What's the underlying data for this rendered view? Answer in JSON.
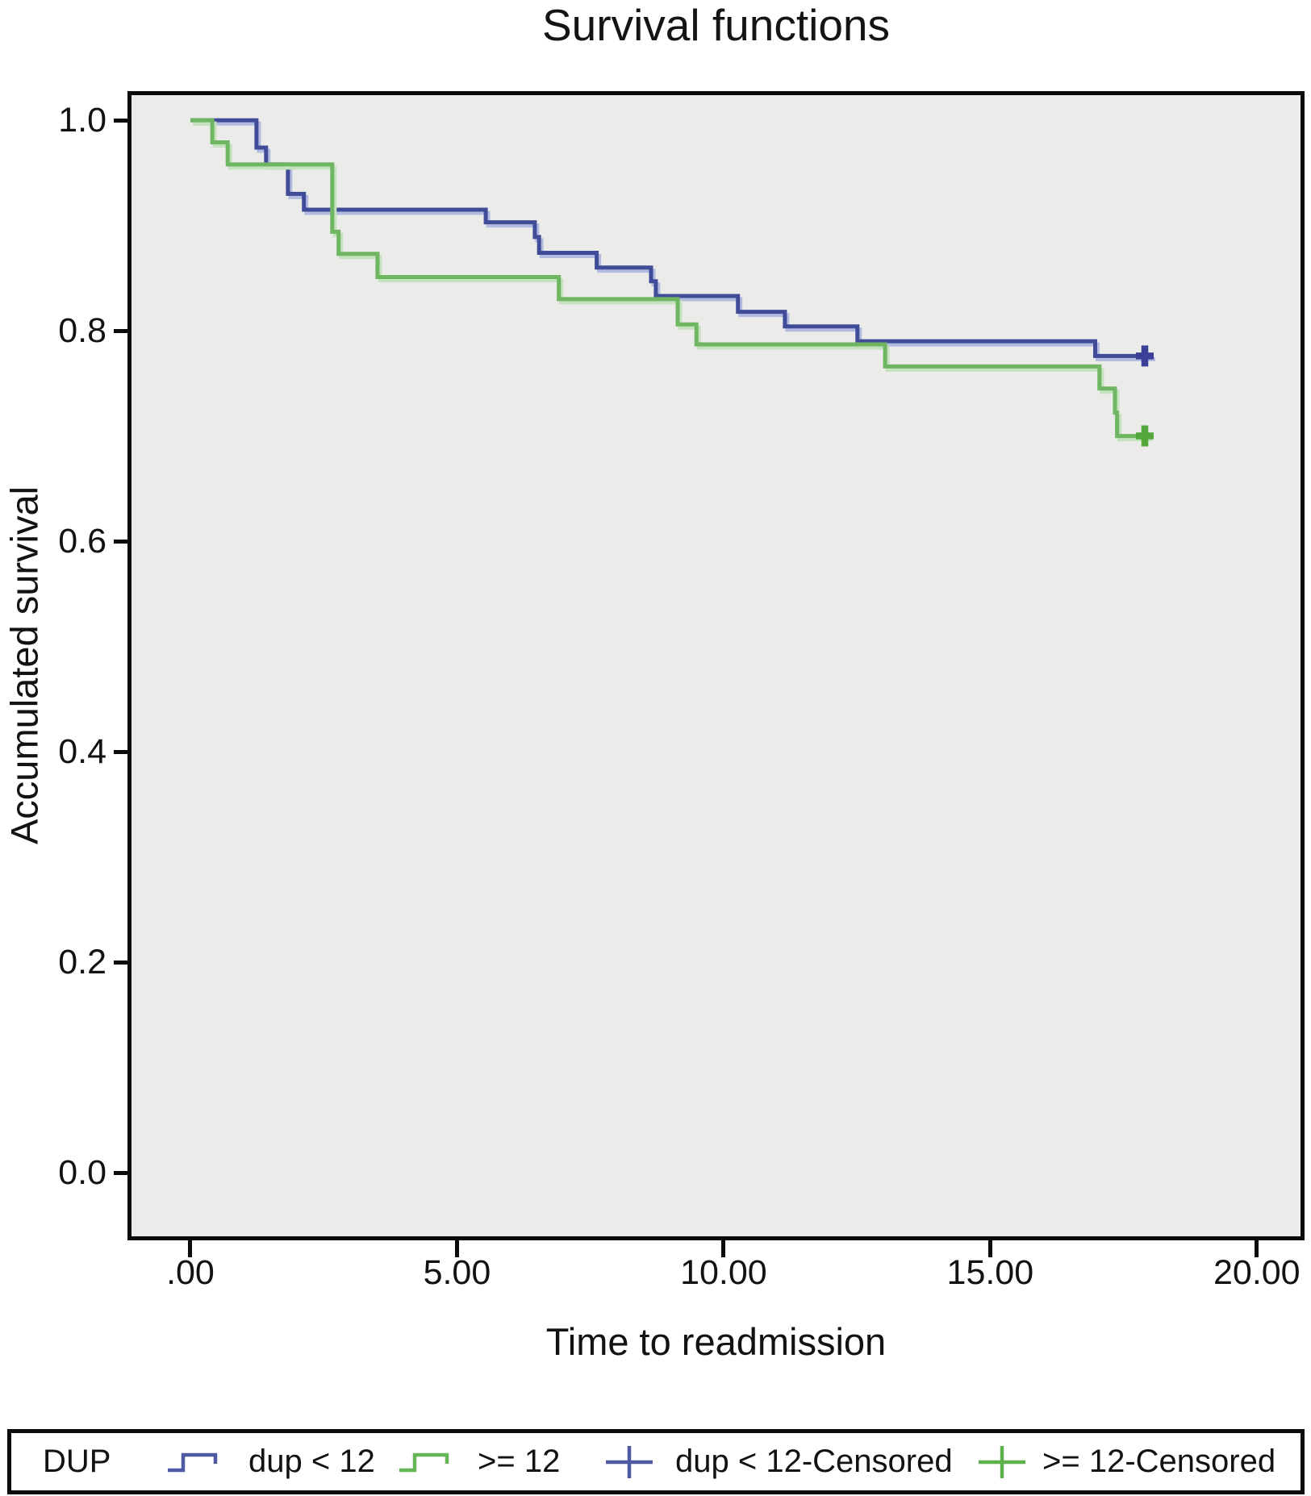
{
  "title": "Survival functions",
  "y_axis": {
    "label": "Accumulated survival",
    "ticks": [
      "1.0",
      "0.8",
      "0.6",
      "0.4",
      "0.2",
      "0.0"
    ],
    "tick_values": [
      1.0,
      0.8,
      0.6,
      0.4,
      0.2,
      0.0
    ]
  },
  "x_axis": {
    "label": "Time to readmission",
    "ticks": [
      ".00",
      "5.00",
      "10.00",
      "15.00",
      "20.00"
    ],
    "tick_values": [
      0,
      5,
      10,
      15,
      20
    ]
  },
  "legend": {
    "title": "DUP",
    "items": [
      {
        "label": "dup < 12",
        "symbol": "step",
        "color": "#4f5aa4"
      },
      {
        "label": ">= 12",
        "symbol": "step",
        "color": "#64b656"
      },
      {
        "label": "dup < 12-Censored",
        "symbol": "plus",
        "color": "#4f5aa4"
      },
      {
        "label": ">= 12-Censored",
        "symbol": "plus",
        "color": "#5cb14a"
      }
    ]
  },
  "colors": {
    "plot_background": "#ebebe9",
    "frame": "#0b0b0b",
    "blue_line": "#414c99",
    "blue_halo": "#b2bbe0",
    "green_line": "#6fb662",
    "green_halo": "#c4e2bd",
    "censor_blue": "#3a3f97",
    "censor_green": "#52a83b"
  },
  "chart_data": {
    "type": "line",
    "subtype": "kaplan-meier-step",
    "title": "Survival functions",
    "xlabel": "Time to readmission",
    "ylabel": "Accumulated survival",
    "xlim": [
      -1.104,
      20.82
    ],
    "ylim": [
      -0.0605,
      1.0238
    ],
    "x_ticks": [
      0,
      5,
      10,
      15,
      20
    ],
    "y_ticks": [
      0.0,
      0.2,
      0.4,
      0.6,
      0.8,
      1.0
    ],
    "grid": false,
    "legend_position": "bottom",
    "series": [
      {
        "name": "dup < 12",
        "color": "#414c99",
        "halo": "#b2bbe0",
        "censor_color": "#3a3f97",
        "steps": [
          [
            0,
            1.0
          ],
          [
            1.24,
            0.974
          ],
          [
            1.42,
            0.958
          ],
          [
            1.83,
            0.93
          ],
          [
            2.13,
            0.915
          ],
          [
            5.54,
            0.903
          ],
          [
            6.46,
            0.889
          ],
          [
            6.54,
            0.874
          ],
          [
            7.62,
            0.86
          ],
          [
            8.64,
            0.847
          ],
          [
            8.73,
            0.833
          ],
          [
            10.27,
            0.818
          ],
          [
            11.15,
            0.804
          ],
          [
            12.51,
            0.79
          ],
          [
            16.97,
            0.776
          ]
        ],
        "end": 18.05,
        "censored": [
          [
            17.9,
            0.776
          ]
        ]
      },
      {
        "name": ">= 12",
        "color": "#6fb662",
        "halo": "#c4e2bd",
        "censor_color": "#52a83b",
        "steps": [
          [
            0,
            1.0
          ],
          [
            0.41,
            0.979
          ],
          [
            0.7,
            0.958
          ],
          [
            2.66,
            0.894
          ],
          [
            2.78,
            0.873
          ],
          [
            3.51,
            0.851
          ],
          [
            6.91,
            0.83
          ],
          [
            9.14,
            0.806
          ],
          [
            9.49,
            0.787
          ],
          [
            13.03,
            0.766
          ],
          [
            17.05,
            0.745
          ],
          [
            17.34,
            0.722
          ],
          [
            17.38,
            0.7
          ]
        ],
        "end": 18.0,
        "censored": [
          [
            17.9,
            0.7
          ]
        ]
      }
    ]
  }
}
